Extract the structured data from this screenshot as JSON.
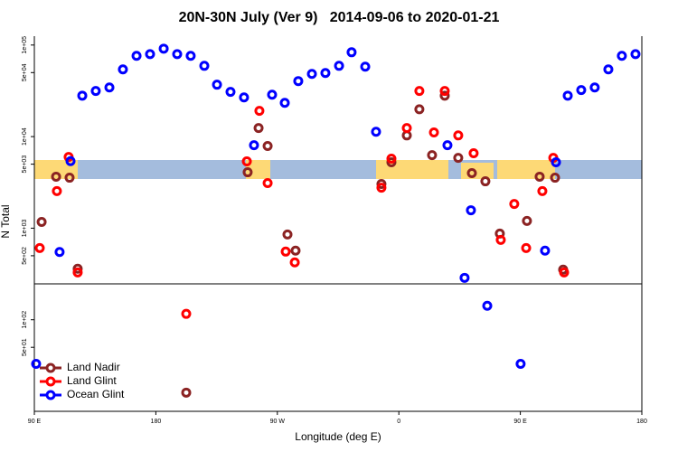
{
  "chart_data": {
    "type": "scatter",
    "title": "20N-30N July (Ver 9)   2014-09-06 to 2020-01-21",
    "x_label": "Longitude (deg E)",
    "y_label": "N Total",
    "xlim": [
      90,
      540
    ],
    "xticks": [
      {
        "value": 90,
        "label": "90 E"
      },
      180,
      {
        "value": 270,
        "label": "90 W"
      },
      {
        "value": 360,
        "label": "0"
      },
      {
        "value": 450,
        "label": "90 E"
      },
      {
        "value": 540,
        "label": "180"
      }
    ],
    "ylim": [
      10,
      125000
    ],
    "log_y": true,
    "yticks": [
      {
        "value": 100000,
        "label": "1e+05"
      },
      {
        "value": 50000,
        "label": "5e+04"
      },
      {
        "value": 10000,
        "label": "1e+04"
      },
      {
        "value": 5000,
        "label": "5e+03"
      },
      {
        "value": 1000,
        "label": "1e+03"
      },
      {
        "value": 500,
        "label": "5e+02"
      },
      {
        "value": 100,
        "label": "1e+02"
      },
      {
        "value": 50,
        "label": "5e+01"
      }
    ],
    "legend": "bottom-left",
    "series": [
      {
        "name": "Land Nadir",
        "color": "#8b2323",
        "x": [
          95.4,
          106.1,
          116.1,
          122.1,
          202.5,
          248.0,
          256.1,
          262.8,
          277.5,
          283.5,
          347.1,
          354.5,
          365.9,
          375.2,
          384.6,
          394.0,
          404.0,
          414.1,
          424.1,
          434.8,
          454.9,
          464.3,
          475.7,
          481.7
        ],
        "values": [
          1170,
          3650,
          3560,
          361,
          16,
          4080,
          12400,
          7890,
          853,
          568,
          3040,
          5240,
          10300,
          19900,
          6280,
          28000,
          5860,
          3990,
          3250,
          873,
          1200,
          3650,
          3560,
          353
        ]
      },
      {
        "name": "Land Glint",
        "color": "#ff0000",
        "x": [
          94.0,
          106.7,
          115.4,
          122.1,
          202.5,
          247.4,
          256.7,
          262.8,
          276.2,
          282.9,
          347.1,
          354.5,
          365.9,
          375.2,
          386.0,
          394.0,
          404.0,
          415.4,
          435.5,
          445.5,
          454.3,
          466.3,
          474.4,
          482.4
        ],
        "values": [
          607,
          2540,
          6000,
          329,
          116,
          5360,
          19100,
          3110,
          555,
          423,
          2770,
          5740,
          12400,
          31500,
          11100,
          31500,
          10300,
          6580,
          745,
          1840,
          607,
          2540,
          5860,
          329
        ]
      },
      {
        "name": "Ocean Glint",
        "color": "#0000ff",
        "x": [
          91.3,
          108.7,
          116.8,
          125.5,
          135.5,
          145.6,
          155.6,
          165.7,
          175.7,
          185.8,
          195.8,
          205.8,
          215.9,
          225.3,
          235.3,
          245.3,
          252.7,
          266.1,
          275.5,
          285.5,
          295.6,
          305.6,
          315.7,
          325.0,
          335.1,
          343.1,
          396.0,
          408.7,
          413.4,
          425.5,
          450.2,
          468.3,
          476.4,
          485.1,
          495.1,
          505.1,
          515.2,
          525.2,
          535.3
        ],
        "values": [
          33,
          550,
          5400,
          28000,
          31500,
          34400,
          54200,
          76200,
          79600,
          91300,
          79600,
          76200,
          59300,
          36900,
          30800,
          26800,
          8050,
          28700,
          23400,
          40400,
          48400,
          49500,
          59300,
          83400,
          58100,
          11300,
          8050,
          287,
          1570,
          142,
          33,
          568,
          5240,
          28000,
          32200,
          34400,
          54200,
          76200,
          79600
        ]
      }
    ]
  }
}
